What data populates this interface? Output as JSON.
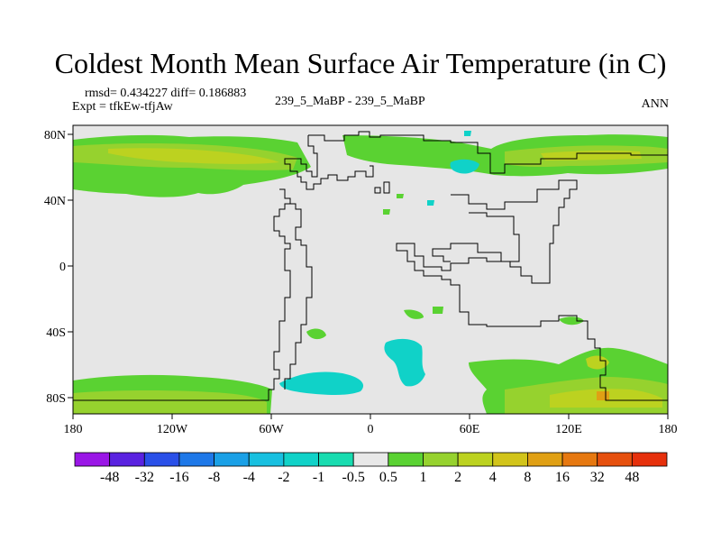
{
  "title": "Coldest Month Mean Surface Air Temperature (in C)",
  "stats": {
    "rmsd_diff": "rmsd= 0.434227 diff= 0.186883",
    "expt": "Expt = tfkEw-tfjAw",
    "case": "239_5_MaBP - 239_5_MaBP",
    "season": "ANN"
  },
  "chart_data": {
    "type": "heatmap",
    "projection": "cylindrical equidistant",
    "field": "temperature difference",
    "background_color": "#e6e6e6",
    "grid": false,
    "x_ticks": [
      "180",
      "120W",
      "60W",
      "0",
      "60E",
      "120E",
      "180"
    ],
    "y_ticks": [
      "80N",
      "40N",
      "0",
      "40S",
      "80S"
    ],
    "xlim": [
      -180,
      180
    ],
    "ylim": [
      -90,
      90
    ],
    "legend_position": "bottom",
    "colorbar": {
      "labels": [
        "-48",
        "-32",
        "-16",
        "-8",
        "-4",
        "-2",
        "-1",
        "-0.5",
        "0.5",
        "1",
        "2",
        "4",
        "8",
        "16",
        "32",
        "48"
      ],
      "colors": [
        "#9a16e6",
        "#5a22e0",
        "#2a50e8",
        "#1e78e8",
        "#1aa0e6",
        "#18c0e0",
        "#10d2c8",
        "#18dcb0",
        "#e8e8e8",
        "#5ad232",
        "#96d22e",
        "#bcd220",
        "#d2c41a",
        "#e0a014",
        "#e67810",
        "#e6500e",
        "#e6300c"
      ]
    }
  }
}
